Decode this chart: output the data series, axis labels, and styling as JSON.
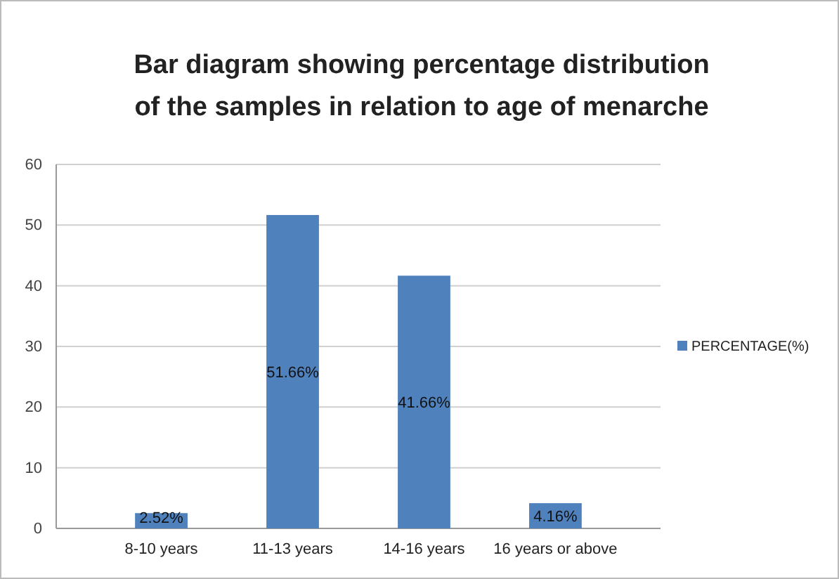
{
  "chart_data": {
    "type": "bar",
    "title": "Bar diagram showing percentage distribution of the samples in relation to age of menarche",
    "categories": [
      "8-10 years",
      "11-13 years",
      "14-16 years",
      "16 years or above"
    ],
    "series": [
      {
        "name": "PERCENTAGE(%)",
        "color": "#4f81bd",
        "values": [
          2.52,
          51.66,
          41.66,
          4.16
        ]
      }
    ],
    "value_labels": [
      "2.52%",
      "51.66%",
      "41.66%",
      "4.16%"
    ],
    "ylim": [
      0,
      60
    ],
    "yticks": [
      0,
      10,
      20,
      30,
      40,
      50,
      60
    ],
    "grid": "y",
    "legend": "right"
  }
}
